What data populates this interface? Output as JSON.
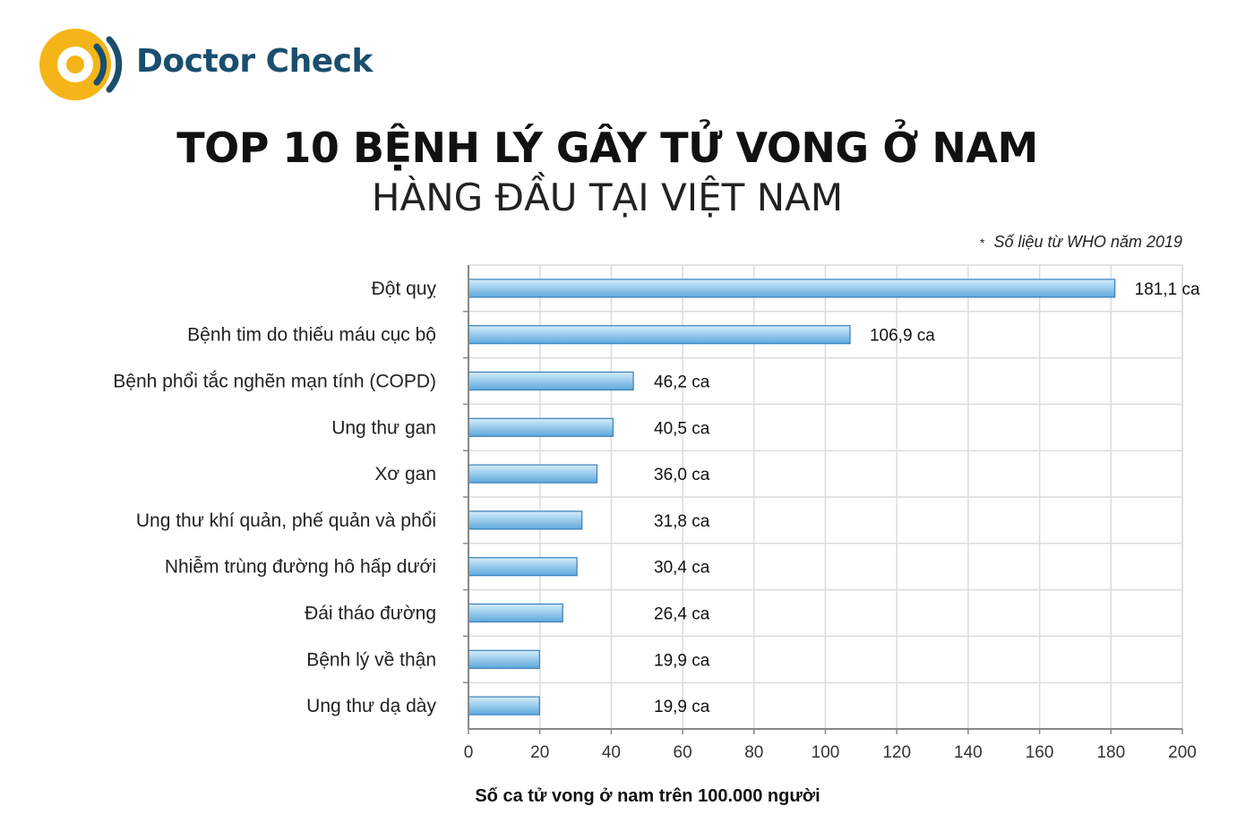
{
  "brand": {
    "name": "Doctor Check",
    "logo_colors": {
      "ring": "#f5b417",
      "inner": "#1a4e6e"
    }
  },
  "header": {
    "title": "TOP 10 BỆNH LÝ GÂY TỬ VONG Ở NAM",
    "subtitle": "HÀNG ĐẦU TẠI VIỆT NAM"
  },
  "note": {
    "star": "*",
    "text": "Số liệu từ WHO năm 2019"
  },
  "chart_data": {
    "type": "bar",
    "orientation": "horizontal",
    "categories": [
      "Đột quỵ",
      "Bệnh tim do thiếu máu cục bộ",
      "Bệnh phổi tắc nghẽn mạn tính (COPD)",
      "Ung thư gan",
      "Xơ gan",
      "Ung thư khí quản, phế quản và phổi",
      "Nhiễm trùng đường hô hấp dưới",
      "Đái tháo đường",
      "Bệnh lý về thận",
      "Ung thư dạ dày"
    ],
    "values": [
      181.1,
      106.9,
      46.2,
      40.5,
      36.0,
      31.8,
      30.4,
      26.4,
      19.9,
      19.9
    ],
    "data_labels": [
      "181,1 ca",
      "106,9 ca",
      "46,2 ca",
      "40,5 ca",
      "36,0 ca",
      "31,8 ca",
      "30,4 ca",
      "26,4 ca",
      "19,9 ca",
      "19,9 ca"
    ],
    "xlabel": "Số ca tử vong ở nam trên 100.000 người",
    "xlim": [
      0,
      200
    ],
    "xticks": [
      "0",
      "20",
      "40",
      "60",
      "80",
      "100",
      "120",
      "140",
      "160",
      "180",
      "200"
    ],
    "grid": true,
    "colors": {
      "bar_top": "#d4ecfa",
      "bar_bottom": "#5ea9de",
      "bar_edge": "#3a7fb8",
      "grid": "#dcdcdc",
      "axis": "#888888"
    }
  }
}
